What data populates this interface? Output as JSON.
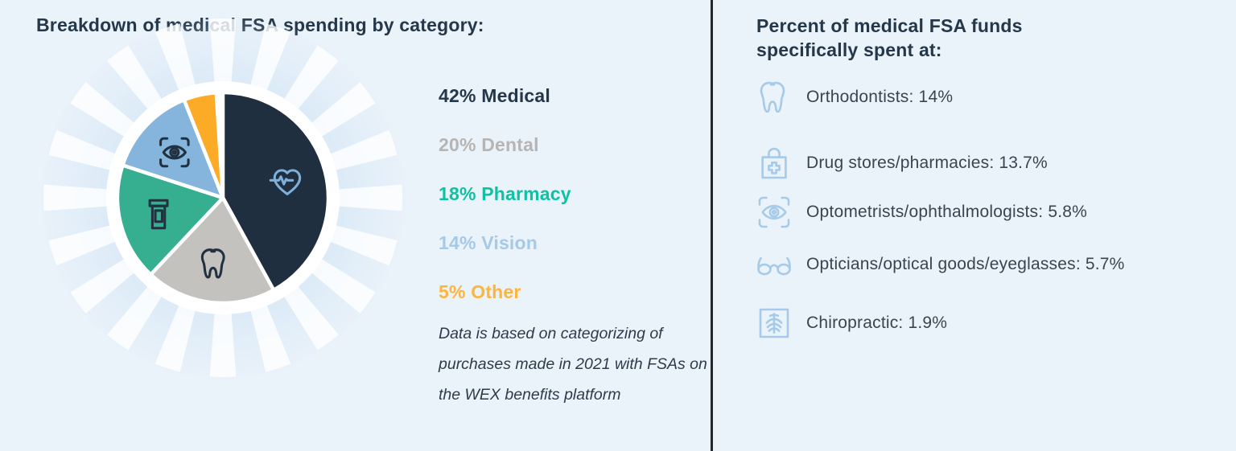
{
  "page": {
    "background": "#eaf2fa",
    "divider_color": "#23272b"
  },
  "chart_data": {
    "type": "pie",
    "title": "Breakdown of medical FSA spending by category:",
    "categories": [
      "Medical",
      "Dental",
      "Pharmacy",
      "Vision",
      "Other"
    ],
    "values": [
      42,
      20,
      18,
      14,
      5
    ],
    "unit": "%",
    "direction": "clockwise",
    "start_angle_deg": 0,
    "legend_position": "right",
    "legend_labels": [
      "42% Medical",
      "20% Dental",
      "18% Pharmacy",
      "14% Vision",
      "5% Other"
    ],
    "slice_colors": [
      "#202f3f",
      "#c4c2bf",
      "#36ae90",
      "#85b5dc",
      "#fbab26"
    ],
    "label_colors": [
      "#24384a",
      "#b6b5b3",
      "#0cc2a3",
      "#a5c9e8",
      "#fcb53e"
    ],
    "slice_icons": [
      "heart-pulse-icon",
      "tooth-icon",
      "pill-bottle-icon",
      "eye-scan-icon",
      null
    ],
    "icon_colors": [
      "#7fb0da",
      "#223140",
      "#223140",
      "#223140",
      null
    ],
    "decor": {
      "sunburst_ray_color": "#ffffff",
      "glow_color": "#d7e8f6",
      "backplate_color": "#ffffff"
    },
    "note": "Data is based on categorizing of purchases made in 2021 with FSAs on the WEX benefits platform"
  },
  "left_section": {
    "title": "Breakdown of medical FSA spending by category:"
  },
  "right_section": {
    "title_line1": "Percent of medical FSA funds",
    "title_line2": "specifically spent at:",
    "items": [
      {
        "icon": "tooth-icon",
        "label": "Orthodontists: 14%",
        "value": 14
      },
      {
        "icon": "medical-bag-icon",
        "label": "Drug stores/pharmacies: 13.7%",
        "value": 13.7
      },
      {
        "icon": "eye-scan-icon",
        "label": "Optometrists/ophthalmologists: 5.8%",
        "value": 5.8
      },
      {
        "icon": "glasses-icon",
        "label": "Opticians/optical goods/eyeglasses: 5.7%",
        "value": 5.7
      },
      {
        "icon": "spine-icon",
        "label": "Chiropractic: 1.9%",
        "value": 1.9
      }
    ]
  }
}
